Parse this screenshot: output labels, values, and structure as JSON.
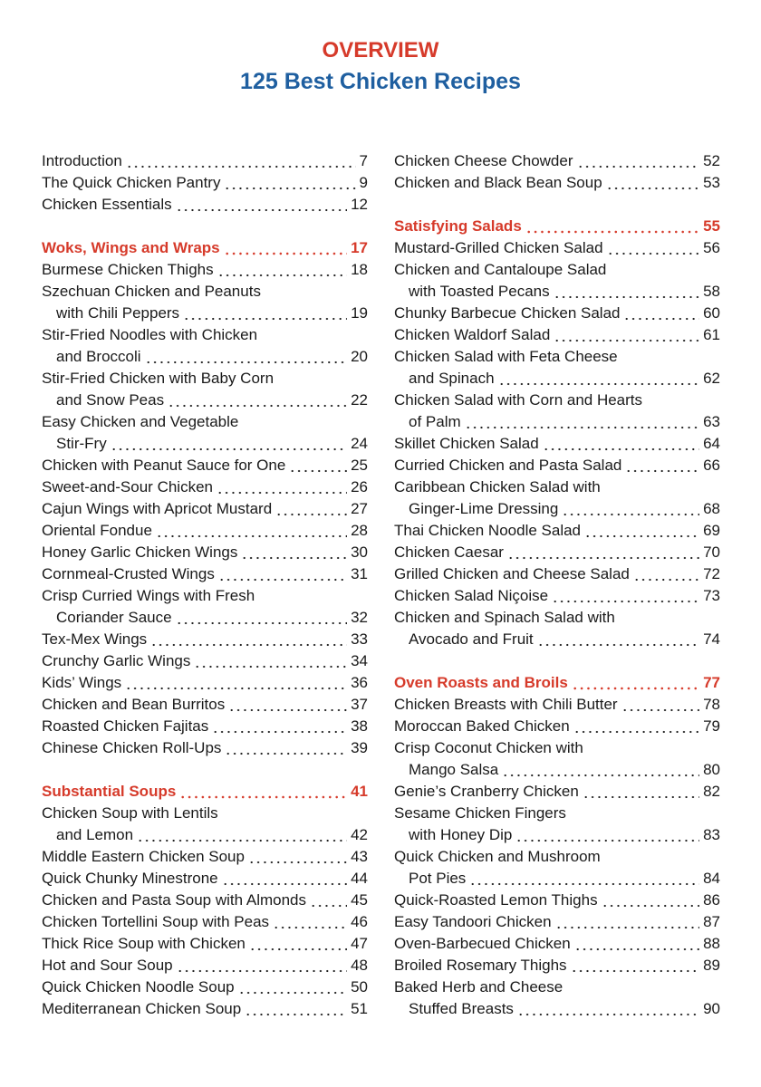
{
  "header": {
    "title": "OVERVIEW",
    "subtitle": "125 Best Chicken Recipes"
  },
  "columns": [
    {
      "blocks": [
        {
          "entries": [
            {
              "lines": [
                "Introduction"
              ],
              "page": 7
            },
            {
              "lines": [
                "The Quick Chicken Pantry"
              ],
              "page": 9
            },
            {
              "lines": [
                "Chicken Essentials"
              ],
              "page": 12
            }
          ]
        },
        {
          "title": "Woks, Wings and Wraps",
          "page": 17,
          "entries": [
            {
              "lines": [
                "Burmese Chicken Thighs"
              ],
              "page": 18
            },
            {
              "lines": [
                "Szechuan Chicken and Peanuts",
                "with Chili Peppers"
              ],
              "page": 19
            },
            {
              "lines": [
                "Stir-Fried Noodles with Chicken",
                "and Broccoli"
              ],
              "page": 20
            },
            {
              "lines": [
                "Stir-Fried Chicken with Baby Corn",
                "and Snow Peas"
              ],
              "page": 22
            },
            {
              "lines": [
                "Easy Chicken and Vegetable",
                "Stir-Fry"
              ],
              "page": 24
            },
            {
              "lines": [
                "Chicken with Peanut Sauce for One"
              ],
              "page": 25
            },
            {
              "lines": [
                "Sweet-and-Sour Chicken"
              ],
              "page": 26
            },
            {
              "lines": [
                "Cajun Wings with Apricot Mustard"
              ],
              "page": 27
            },
            {
              "lines": [
                "Oriental Fondue"
              ],
              "page": 28
            },
            {
              "lines": [
                "Honey Garlic Chicken Wings"
              ],
              "page": 30
            },
            {
              "lines": [
                "Cornmeal-Crusted Wings"
              ],
              "page": 31
            },
            {
              "lines": [
                "Crisp Curried Wings with Fresh",
                "Coriander Sauce"
              ],
              "page": 32
            },
            {
              "lines": [
                "Tex-Mex Wings"
              ],
              "page": 33
            },
            {
              "lines": [
                "Crunchy Garlic Wings"
              ],
              "page": 34
            },
            {
              "lines": [
                "Kids’ Wings"
              ],
              "page": 36
            },
            {
              "lines": [
                "Chicken and Bean Burritos"
              ],
              "page": 37
            },
            {
              "lines": [
                "Roasted Chicken Fajitas"
              ],
              "page": 38
            },
            {
              "lines": [
                "Chinese Chicken Roll-Ups"
              ],
              "page": 39
            }
          ]
        },
        {
          "title": "Substantial Soups",
          "page": 41,
          "entries": [
            {
              "lines": [
                "Chicken Soup with Lentils",
                "and Lemon"
              ],
              "page": 42
            },
            {
              "lines": [
                "Middle Eastern Chicken Soup"
              ],
              "page": 43
            },
            {
              "lines": [
                "Quick Chunky Minestrone"
              ],
              "page": 44
            },
            {
              "lines": [
                "Chicken and Pasta Soup with Almonds"
              ],
              "page": 45
            },
            {
              "lines": [
                "Chicken Tortellini Soup with Peas"
              ],
              "page": 46
            },
            {
              "lines": [
                "Thick Rice Soup with Chicken"
              ],
              "page": 47
            },
            {
              "lines": [
                "Hot and Sour Soup"
              ],
              "page": 48
            },
            {
              "lines": [
                "Quick Chicken Noodle Soup"
              ],
              "page": 50
            },
            {
              "lines": [
                "Mediterranean Chicken Soup"
              ],
              "page": 51
            }
          ]
        }
      ]
    },
    {
      "blocks": [
        {
          "entries": [
            {
              "lines": [
                "Chicken Cheese Chowder"
              ],
              "page": 52
            },
            {
              "lines": [
                "Chicken and Black Bean Soup"
              ],
              "page": 53
            }
          ]
        },
        {
          "title": "Satisfying Salads",
          "page": 55,
          "entries": [
            {
              "lines": [
                "Mustard-Grilled Chicken Salad"
              ],
              "page": 56
            },
            {
              "lines": [
                "Chicken and Cantaloupe Salad",
                "with Toasted Pecans"
              ],
              "page": 58
            },
            {
              "lines": [
                "Chunky Barbecue Chicken Salad"
              ],
              "page": 60
            },
            {
              "lines": [
                "Chicken Waldorf Salad"
              ],
              "page": 61
            },
            {
              "lines": [
                "Chicken Salad with Feta Cheese",
                "and Spinach"
              ],
              "page": 62
            },
            {
              "lines": [
                "Chicken Salad with Corn and Hearts",
                "of Palm"
              ],
              "page": 63
            },
            {
              "lines": [
                "Skillet Chicken Salad"
              ],
              "page": 64
            },
            {
              "lines": [
                "Curried Chicken and Pasta Salad"
              ],
              "page": 66
            },
            {
              "lines": [
                "Caribbean Chicken Salad with",
                "Ginger-Lime Dressing"
              ],
              "page": 68
            },
            {
              "lines": [
                "Thai Chicken Noodle Salad"
              ],
              "page": 69
            },
            {
              "lines": [
                "Chicken Caesar"
              ],
              "page": 70
            },
            {
              "lines": [
                "Grilled Chicken and Cheese Salad"
              ],
              "page": 72
            },
            {
              "lines": [
                "Chicken Salad Niçoise"
              ],
              "page": 73
            },
            {
              "lines": [
                "Chicken and Spinach Salad with",
                "Avocado and Fruit"
              ],
              "page": 74
            }
          ]
        },
        {
          "title": "Oven Roasts and Broils",
          "page": 77,
          "entries": [
            {
              "lines": [
                "Chicken Breasts with Chili Butter"
              ],
              "page": 78
            },
            {
              "lines": [
                "Moroccan Baked Chicken"
              ],
              "page": 79
            },
            {
              "lines": [
                "Crisp Coconut Chicken with",
                "Mango Salsa"
              ],
              "page": 80
            },
            {
              "lines": [
                "Genie’s Cranberry Chicken"
              ],
              "page": 82
            },
            {
              "lines": [
                "Sesame Chicken Fingers",
                "with Honey Dip"
              ],
              "page": 83
            },
            {
              "lines": [
                "Quick Chicken and Mushroom",
                "Pot Pies"
              ],
              "page": 84
            },
            {
              "lines": [
                "Quick-Roasted Lemon Thighs"
              ],
              "page": 86
            },
            {
              "lines": [
                "Easy Tandoori Chicken"
              ],
              "page": 87
            },
            {
              "lines": [
                "Oven-Barbecued Chicken"
              ],
              "page": 88
            },
            {
              "lines": [
                "Broiled Rosemary Thighs"
              ],
              "page": 89
            },
            {
              "lines": [
                "Baked Herb and Cheese",
                "Stuffed Breasts"
              ],
              "page": 90
            }
          ]
        }
      ]
    }
  ]
}
